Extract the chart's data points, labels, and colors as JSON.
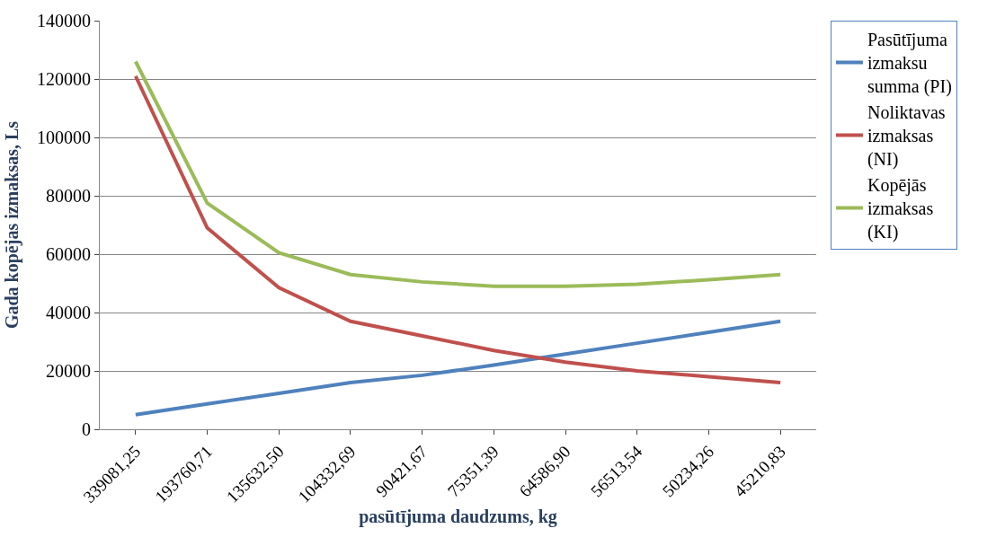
{
  "chart_data": {
    "type": "line",
    "xlabel": "pasūtījuma daudzums, kg",
    "ylabel": "Gada kopējas izmaksas, Ls",
    "categories": [
      "339081,25",
      "193760,71",
      "135632,50",
      "104332,69",
      "90421,67",
      "75351,39",
      "64586,90",
      "56513,54",
      "50234,26",
      "45210,83"
    ],
    "series": [
      {
        "name": "Pasūtījuma izmaksu summa (PI)",
        "color": "#4f81bd",
        "values": [
          5000,
          8700,
          12300,
          16000,
          18500,
          22000,
          25800,
          29500,
          33200,
          37000
        ]
      },
      {
        "name": "Noliktavas izmaksas (NI)",
        "color": "#c0504d",
        "values": [
          121000,
          69000,
          48500,
          37000,
          32000,
          27000,
          23000,
          20000,
          18000,
          16000
        ]
      },
      {
        "name": "Kopējās izmaksas (KI)",
        "color": "#9bbb59",
        "values": [
          126000,
          77500,
          60500,
          53000,
          50500,
          49000,
          49000,
          49700,
          51200,
          53000
        ]
      }
    ],
    "ylim": [
      0,
      140000
    ],
    "yticks": [
      0,
      20000,
      40000,
      60000,
      80000,
      100000,
      120000,
      140000
    ],
    "grid": "y",
    "legend": "right",
    "marker": "none",
    "line_style": "solid"
  }
}
